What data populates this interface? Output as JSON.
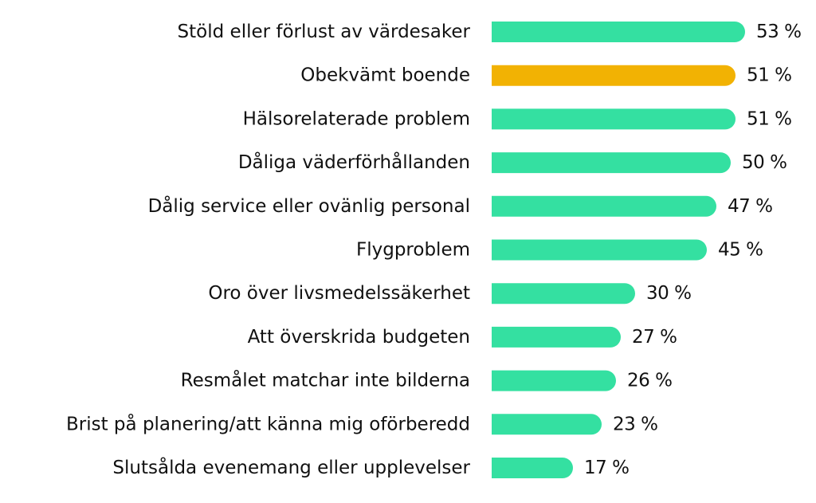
{
  "chart_data": {
    "type": "bar",
    "orientation": "horizontal",
    "categories": [
      "Stöld eller förlust av värdesaker",
      "Obekvämt boende",
      "Hälsorelaterade problem",
      "Dåliga väderförhållanden",
      "Dålig service eller ovänlig personal",
      "Flygproblem",
      "Oro över livsmedelssäkerhet",
      "Att överskrida budgeten",
      "Resmålet matchar inte bilderna",
      "Brist på planering/att känna mig oförberedd",
      "Slutsålda evenemang eller upplevelser"
    ],
    "values": [
      53,
      51,
      51,
      50,
      47,
      45,
      30,
      27,
      26,
      23,
      17
    ],
    "value_labels": [
      "53 %",
      "51 %",
      "51 %",
      "50 %",
      "47 %",
      "45 %",
      "30 %",
      "27 %",
      "26 %",
      "23 %",
      "17 %"
    ],
    "highlight_index": 1,
    "unit": "%",
    "title": "",
    "xlabel": "",
    "ylabel": "",
    "xlim": [
      0,
      53
    ],
    "grid": false,
    "legend": "none",
    "colors": {
      "bar": "#34e0a1",
      "highlight": "#f2b203",
      "text": "#111111"
    }
  }
}
